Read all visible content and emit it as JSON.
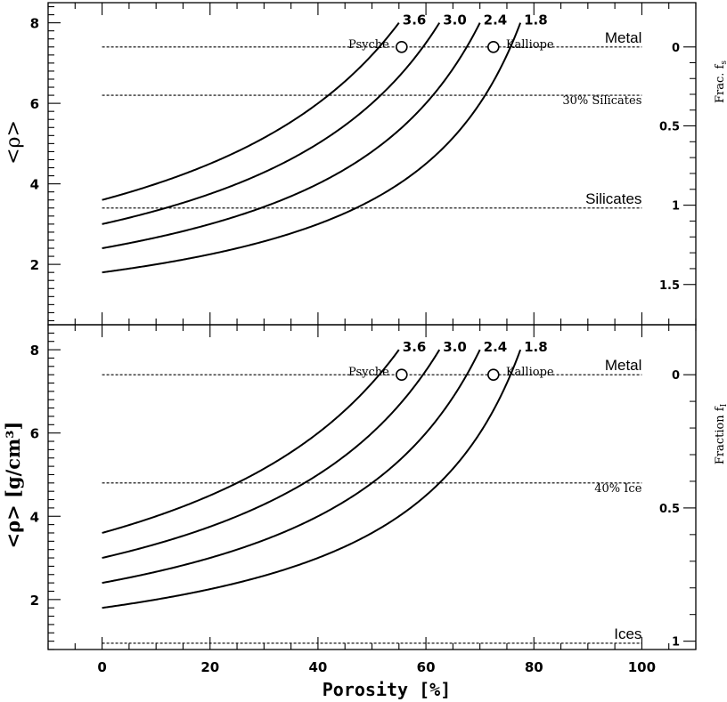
{
  "colors": {
    "ink": "#000000",
    "background": "#ffffff"
  },
  "chart_data": [
    {
      "type": "line",
      "panel": "top",
      "ylabel": "<ρ>",
      "right_label": "Frac. f",
      "right_label_sub": "s",
      "xlim": [
        -10,
        110
      ],
      "ylim": [
        0.5,
        8.5
      ],
      "yticks": [
        2,
        4,
        6,
        8
      ],
      "right_ticks": [
        {
          "label": "0",
          "value": 7.4
        },
        {
          "label": "0.5",
          "value": 5.44
        },
        {
          "label": "1",
          "value": 3.47
        },
        {
          "label": "1.5",
          "value": 1.5
        }
      ],
      "series": [
        {
          "name": "3.6",
          "grain_density": 3.6
        },
        {
          "name": "3.0",
          "grain_density": 3.0
        },
        {
          "name": "2.4",
          "grain_density": 2.4
        },
        {
          "name": "1.8",
          "grain_density": 1.8
        }
      ],
      "reference_lines": [
        {
          "label": "Metal",
          "y": 7.4,
          "style": "sans"
        },
        {
          "label": "30% Silicates",
          "y": 6.2,
          "style": "serif"
        },
        {
          "label": "Silicates",
          "y": 3.4,
          "style": "sans"
        }
      ],
      "points": [
        {
          "label": "Psyche",
          "x": 55.5,
          "y": 7.4,
          "label_side": "left"
        },
        {
          "label": "Kalliope",
          "x": 72.5,
          "y": 7.4,
          "label_side": "right"
        }
      ]
    },
    {
      "type": "line",
      "panel": "bottom",
      "ylabel": "<ρ>  [g/cm³]",
      "xlabel": "Porosity  [%]",
      "right_label": "Fraction f",
      "right_label_sub": "I",
      "xlim": [
        -10,
        110
      ],
      "ylim": [
        0.8,
        8.6
      ],
      "xticks": [
        0,
        20,
        40,
        60,
        80,
        100
      ],
      "yticks": [
        2,
        4,
        6,
        8
      ],
      "right_ticks": [
        {
          "label": "0",
          "value": 7.4
        },
        {
          "label": "0.5",
          "value": 4.2
        },
        {
          "label": "1",
          "value": 1.0
        }
      ],
      "series": [
        {
          "name": "3.6",
          "grain_density": 3.6
        },
        {
          "name": "3.0",
          "grain_density": 3.0
        },
        {
          "name": "2.4",
          "grain_density": 2.4
        },
        {
          "name": "1.8",
          "grain_density": 1.8
        }
      ],
      "reference_lines": [
        {
          "label": "Metal",
          "y": 7.4,
          "style": "sans"
        },
        {
          "label": "40% Ice",
          "y": 4.8,
          "style": "serif"
        },
        {
          "label": "Ices",
          "y": 0.95,
          "style": "sans"
        }
      ],
      "points": [
        {
          "label": "Psyche",
          "x": 55.5,
          "y": 7.4,
          "label_side": "left"
        },
        {
          "label": "Kalliope",
          "x": 72.5,
          "y": 7.4,
          "label_side": "right"
        }
      ]
    }
  ]
}
